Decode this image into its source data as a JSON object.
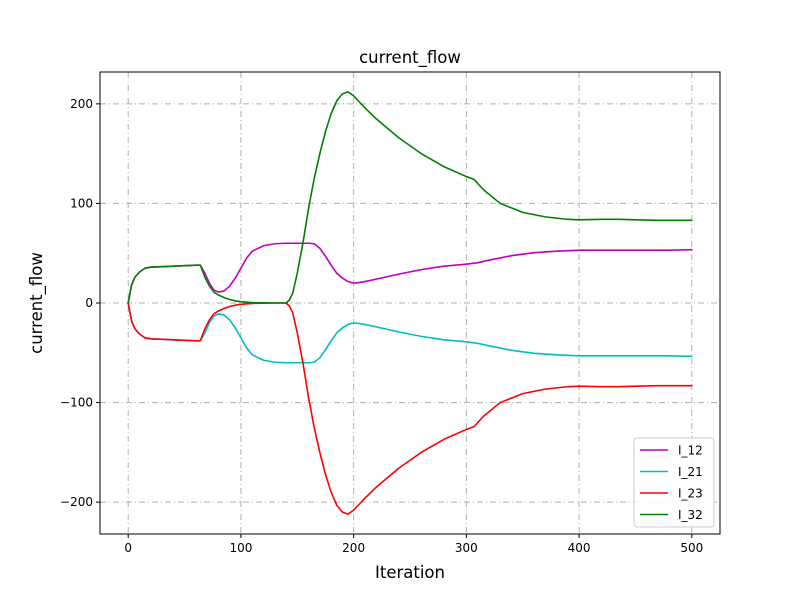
{
  "chart_data": {
    "type": "line",
    "title": "current_flow",
    "xlabel": "Iteration",
    "ylabel": "current_flow",
    "xlim": [
      -25,
      525
    ],
    "ylim": [
      -232,
      232
    ],
    "x_ticks": [
      0,
      100,
      200,
      300,
      400,
      500
    ],
    "y_ticks": [
      -200,
      -100,
      0,
      100,
      200
    ],
    "x_tick_labels": [
      "0",
      "100",
      "200",
      "300",
      "400",
      "500"
    ],
    "y_tick_labels": [
      "−200",
      "−100",
      "0",
      "100",
      "200"
    ],
    "grid": true,
    "legend_position": "lower-right",
    "series": [
      {
        "name": "I_12",
        "color": "#bf00bf",
        "x": [
          0,
          3,
          6,
          10,
          15,
          20,
          30,
          40,
          50,
          60,
          64,
          68,
          72,
          76,
          80,
          85,
          90,
          95,
          100,
          105,
          110,
          120,
          130,
          140,
          150,
          160,
          165,
          170,
          175,
          180,
          185,
          190,
          195,
          200,
          205,
          210,
          220,
          240,
          260,
          280,
          300,
          310,
          320,
          340,
          360,
          380,
          400,
          420,
          440,
          460,
          480,
          500
        ],
        "y": [
          0,
          18,
          26,
          31,
          35,
          36,
          36.5,
          37,
          37.5,
          38,
          38,
          30,
          20,
          13,
          11,
          12,
          17,
          25,
          35,
          45,
          52,
          57.5,
          59.5,
          60,
          60,
          60,
          59.5,
          55,
          47,
          38,
          30,
          25,
          21.5,
          20,
          20.5,
          21.5,
          24,
          29,
          33.5,
          37,
          39,
          40.5,
          43,
          47.5,
          50.5,
          52,
          53,
          53,
          53,
          53,
          53,
          53.5
        ]
      },
      {
        "name": "I_21",
        "color": "#00bfbf",
        "x": [
          0,
          3,
          6,
          10,
          15,
          20,
          30,
          40,
          50,
          60,
          64,
          68,
          72,
          76,
          80,
          85,
          90,
          95,
          100,
          105,
          110,
          120,
          130,
          140,
          150,
          160,
          165,
          170,
          175,
          180,
          185,
          190,
          195,
          200,
          205,
          210,
          220,
          240,
          260,
          280,
          300,
          310,
          320,
          340,
          360,
          380,
          400,
          420,
          440,
          460,
          480,
          500
        ],
        "y": [
          0,
          -18,
          -26,
          -31,
          -35,
          -36,
          -36.5,
          -37,
          -37.5,
          -38,
          -38,
          -30,
          -20,
          -13,
          -11,
          -12,
          -17,
          -25,
          -35,
          -45,
          -52,
          -57.5,
          -59.5,
          -60,
          -60,
          -60,
          -59.5,
          -55,
          -47,
          -38,
          -30,
          -25,
          -21.5,
          -20,
          -20.5,
          -21.5,
          -24,
          -29,
          -33.5,
          -37,
          -39,
          -40.5,
          -43,
          -47.5,
          -50.5,
          -52,
          -53,
          -53,
          -53,
          -53,
          -53,
          -53.5
        ]
      },
      {
        "name": "I_23",
        "color": "#ff0000",
        "x": [
          0,
          3,
          6,
          10,
          15,
          20,
          30,
          40,
          50,
          60,
          64,
          68,
          72,
          76,
          80,
          85,
          90,
          95,
          100,
          105,
          110,
          120,
          130,
          140,
          143,
          146,
          150,
          155,
          160,
          165,
          170,
          175,
          180,
          185,
          190,
          195,
          200,
          205,
          210,
          220,
          240,
          260,
          280,
          300,
          307,
          315,
          330,
          350,
          370,
          390,
          400,
          420,
          435,
          450,
          470,
          500
        ],
        "y": [
          0,
          -18,
          -26,
          -31,
          -35,
          -36,
          -36.5,
          -37,
          -37.5,
          -38,
          -38,
          -26,
          -17,
          -11,
          -8,
          -5.5,
          -3.5,
          -2.2,
          -1.3,
          -0.8,
          -0.4,
          -0.2,
          0,
          0,
          -3,
          -10,
          -30,
          -60,
          -95,
          -125,
          -150,
          -172,
          -190,
          -203,
          -210,
          -212,
          -208,
          -202,
          -196,
          -185,
          -166,
          -150,
          -137,
          -127,
          -124,
          -114,
          -100,
          -91,
          -86.5,
          -84,
          -83.5,
          -84,
          -84,
          -83.5,
          -83,
          -83
        ]
      },
      {
        "name": "I_32",
        "color": "#008000",
        "x": [
          0,
          3,
          6,
          10,
          15,
          20,
          30,
          40,
          50,
          60,
          64,
          68,
          72,
          76,
          80,
          85,
          90,
          95,
          100,
          105,
          110,
          120,
          130,
          140,
          143,
          146,
          150,
          155,
          160,
          165,
          170,
          175,
          180,
          185,
          190,
          195,
          200,
          205,
          210,
          220,
          240,
          260,
          280,
          300,
          307,
          315,
          330,
          350,
          370,
          390,
          400,
          420,
          435,
          450,
          470,
          500
        ],
        "y": [
          0,
          18,
          26,
          31,
          35,
          36,
          36.5,
          37,
          37.5,
          38,
          38,
          26,
          17,
          11,
          8,
          5.5,
          3.5,
          2.2,
          1.3,
          0.8,
          0.4,
          0.2,
          0,
          0,
          3,
          10,
          30,
          60,
          95,
          125,
          150,
          172,
          190,
          203,
          210,
          212,
          208,
          202,
          196,
          185,
          166,
          150,
          137,
          127,
          124,
          114,
          100,
          91,
          86.5,
          84,
          83.5,
          84,
          84,
          83.5,
          83,
          83
        ]
      }
    ]
  }
}
